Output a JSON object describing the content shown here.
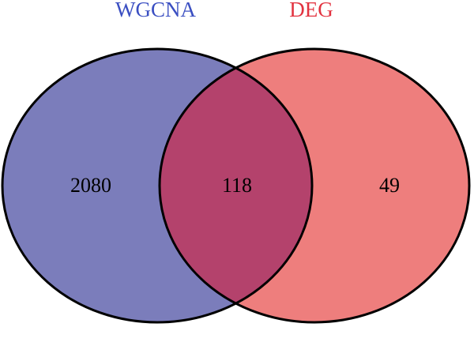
{
  "chart_data": {
    "type": "venn",
    "sets": [
      {
        "name": "WGCNA",
        "color": "#7b7dbb",
        "label_color": "#3b4fc2"
      },
      {
        "name": "DEG",
        "color": "#ee7e7d",
        "label_color": "#e2323f"
      }
    ],
    "values": [
      2080,
      118,
      49
    ],
    "overlap_color": "#b4426c"
  }
}
